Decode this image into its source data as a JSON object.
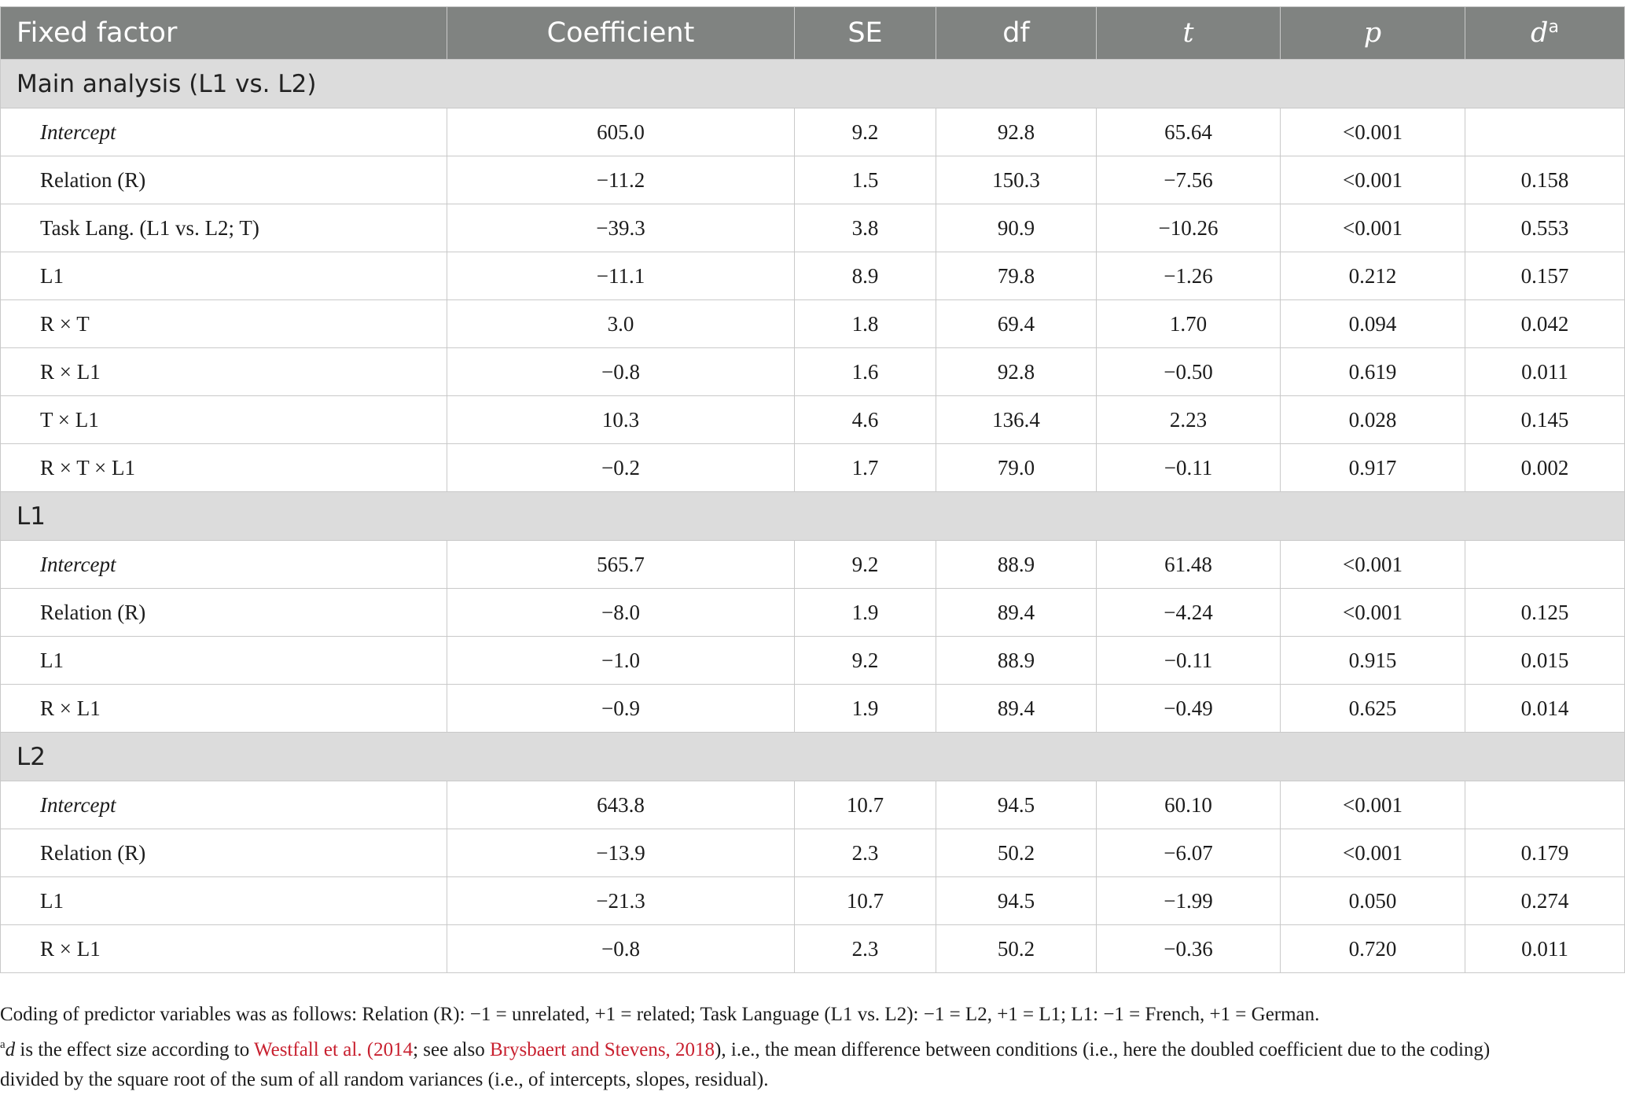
{
  "columns": [
    "Fixed factor",
    "Coefficient",
    "SE",
    "df",
    "t",
    "p",
    "d",
    "a"
  ],
  "sections": [
    {
      "title": "Main analysis (L1 vs. L2)",
      "rows": [
        {
          "factor": "Intercept",
          "italic": true,
          "coef": "605.0",
          "se": "9.2",
          "df": "92.8",
          "t": "65.64",
          "p": "<0.001",
          "d": ""
        },
        {
          "factor": "Relation (R)",
          "italic": false,
          "coef": "−11.2",
          "se": "1.5",
          "df": "150.3",
          "t": "−7.56",
          "p": "<0.001",
          "d": "0.158"
        },
        {
          "factor": "Task Lang. (L1 vs. L2; T)",
          "italic": false,
          "coef": "−39.3",
          "se": "3.8",
          "df": "90.9",
          "t": "−10.26",
          "p": "<0.001",
          "d": "0.553"
        },
        {
          "factor": "L1",
          "italic": false,
          "coef": "−11.1",
          "se": "8.9",
          "df": "79.8",
          "t": "−1.26",
          "p": "0.212",
          "d": "0.157"
        },
        {
          "factor": "R × T",
          "italic": false,
          "coef": "3.0",
          "se": "1.8",
          "df": "69.4",
          "t": "1.70",
          "p": "0.094",
          "d": "0.042"
        },
        {
          "factor": "R × L1",
          "italic": false,
          "coef": "−0.8",
          "se": "1.6",
          "df": "92.8",
          "t": "−0.50",
          "p": "0.619",
          "d": "0.011"
        },
        {
          "factor": "T × L1",
          "italic": false,
          "coef": "10.3",
          "se": "4.6",
          "df": "136.4",
          "t": "2.23",
          "p": "0.028",
          "d": "0.145"
        },
        {
          "factor": "R × T × L1",
          "italic": false,
          "coef": "−0.2",
          "se": "1.7",
          "df": "79.0",
          "t": "−0.11",
          "p": "0.917",
          "d": "0.002"
        }
      ]
    },
    {
      "title": "L1",
      "rows": [
        {
          "factor": "Intercept",
          "italic": true,
          "coef": "565.7",
          "se": "9.2",
          "df": "88.9",
          "t": "61.48",
          "p": "<0.001",
          "d": ""
        },
        {
          "factor": "Relation (R)",
          "italic": false,
          "coef": "−8.0",
          "se": "1.9",
          "df": "89.4",
          "t": "−4.24",
          "p": "<0.001",
          "d": "0.125"
        },
        {
          "factor": "L1",
          "italic": false,
          "coef": "−1.0",
          "se": "9.2",
          "df": "88.9",
          "t": "−0.11",
          "p": "0.915",
          "d": "0.015"
        },
        {
          "factor": "R × L1",
          "italic": false,
          "coef": "−0.9",
          "se": "1.9",
          "df": "89.4",
          "t": "−0.49",
          "p": "0.625",
          "d": "0.014"
        }
      ]
    },
    {
      "title": "L2",
      "rows": [
        {
          "factor": "Intercept",
          "italic": true,
          "coef": "643.8",
          "se": "10.7",
          "df": "94.5",
          "t": "60.10",
          "p": "<0.001",
          "d": ""
        },
        {
          "factor": "Relation (R)",
          "italic": false,
          "coef": "−13.9",
          "se": "2.3",
          "df": "50.2",
          "t": "−6.07",
          "p": "<0.001",
          "d": "0.179"
        },
        {
          "factor": "L1",
          "italic": false,
          "coef": "−21.3",
          "se": "10.7",
          "df": "94.5",
          "t": "−1.99",
          "p": "0.050",
          "d": "0.274"
        },
        {
          "factor": "R × L1",
          "italic": false,
          "coef": "−0.8",
          "se": "2.3",
          "df": "50.2",
          "t": "−0.36",
          "p": "0.720",
          "d": "0.011"
        }
      ]
    }
  ],
  "notes": {
    "coding": "Coding of predictor variables was as follows: Relation (R): −1 = unrelated, +1 = related; Task Language (L1 vs. L2): −1 = L2, +1 = L1; L1: −1 = French, +1 = German.",
    "footnote_mark": "a",
    "footnote_d": "d",
    "footnote_part1": " is the effect size according to ",
    "ref1": "Westfall et al. (2014",
    "footnote_part2": "; see also ",
    "ref2": "Brysbaert and Stevens, 2018",
    "footnote_part3": "), i.e., the mean difference between conditions (i.e., here the doubled coefficient due to the coding)",
    "footnote_line2": "divided by the square root of the sum of all random variances (i.e., of intercepts, slopes, residual)."
  },
  "colors": {
    "header_bg": "#808381",
    "section_bg": "#dcdcdc",
    "link": "#c8202f"
  }
}
